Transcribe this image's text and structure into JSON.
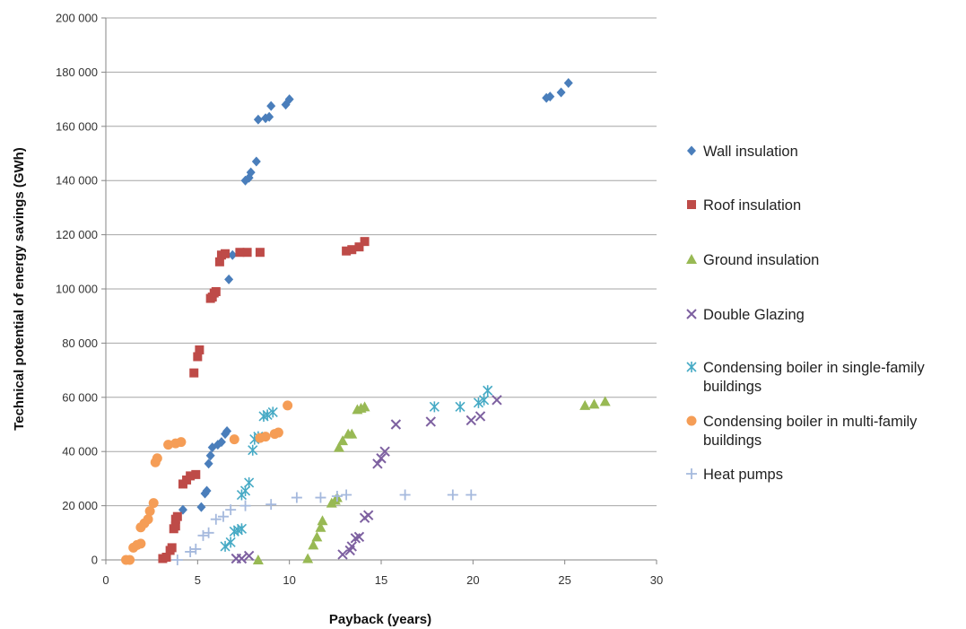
{
  "chart_data": {
    "type": "scatter",
    "title": "",
    "xlabel": "Payback (years)",
    "ylabel": "Technical potential of energy savings (GWh)",
    "xlim": [
      0,
      30
    ],
    "ylim": [
      0,
      200000
    ],
    "xticks": [
      0,
      5,
      10,
      15,
      20,
      25,
      30
    ],
    "yticks": [
      0,
      20000,
      40000,
      60000,
      80000,
      100000,
      120000,
      140000,
      160000,
      180000,
      200000
    ],
    "xtick_labels": [
      "0",
      "5",
      "10",
      "15",
      "20",
      "25",
      "30"
    ],
    "ytick_labels": [
      "0",
      "20 000",
      "40 000",
      "60 000",
      "80 000",
      "100 000",
      "120 000",
      "140 000",
      "160 000",
      "180 000",
      "200 000"
    ],
    "grid": "horizontal",
    "legend_position": "right",
    "series": [
      {
        "name": "Wall insulation",
        "marker": "diamond",
        "color": "#4a7ebb",
        "points": [
          [
            4.2,
            18500
          ],
          [
            5.2,
            19500
          ],
          [
            5.4,
            24500
          ],
          [
            5.5,
            25500
          ],
          [
            5.6,
            35500
          ],
          [
            5.7,
            38500
          ],
          [
            5.8,
            41500
          ],
          [
            6.1,
            42500
          ],
          [
            6.3,
            43500
          ],
          [
            6.5,
            46500
          ],
          [
            6.6,
            47500
          ],
          [
            6.7,
            103500
          ],
          [
            6.9,
            112500
          ],
          [
            7.6,
            140000
          ],
          [
            7.8,
            141000
          ],
          [
            7.9,
            143000
          ],
          [
            8.2,
            147000
          ],
          [
            8.3,
            162500
          ],
          [
            8.7,
            163000
          ],
          [
            8.9,
            163500
          ],
          [
            9.0,
            167500
          ],
          [
            9.8,
            168000
          ],
          [
            10.0,
            170000
          ],
          [
            24.0,
            170500
          ],
          [
            24.2,
            171000
          ],
          [
            24.8,
            172500
          ],
          [
            25.2,
            176000
          ]
        ]
      },
      {
        "name": "Roof insulation",
        "marker": "square",
        "color": "#be4b48",
        "points": [
          [
            3.1,
            500
          ],
          [
            3.3,
            1000
          ],
          [
            3.5,
            3500
          ],
          [
            3.6,
            4500
          ],
          [
            3.7,
            11500
          ],
          [
            3.8,
            12500
          ],
          [
            3.8,
            15000
          ],
          [
            3.9,
            16000
          ],
          [
            4.2,
            28000
          ],
          [
            4.4,
            29500
          ],
          [
            4.6,
            31000
          ],
          [
            4.9,
            31500
          ],
          [
            4.8,
            69000
          ],
          [
            5.0,
            75000
          ],
          [
            5.1,
            77500
          ],
          [
            5.7,
            96500
          ],
          [
            5.8,
            97000
          ],
          [
            5.9,
            98500
          ],
          [
            6.0,
            99000
          ],
          [
            6.2,
            110000
          ],
          [
            6.3,
            112500
          ],
          [
            6.5,
            113000
          ],
          [
            7.3,
            113500
          ],
          [
            7.7,
            113500
          ],
          [
            8.4,
            113500
          ],
          [
            13.1,
            114000
          ],
          [
            13.4,
            114500
          ],
          [
            13.8,
            115500
          ],
          [
            14.1,
            117500
          ]
        ]
      },
      {
        "name": "Ground insulation",
        "marker": "triangle",
        "color": "#98b954",
        "points": [
          [
            8.3,
            0
          ],
          [
            11.0,
            500
          ],
          [
            11.3,
            5500
          ],
          [
            11.5,
            8500
          ],
          [
            11.7,
            12000
          ],
          [
            11.8,
            14500
          ],
          [
            12.3,
            21000
          ],
          [
            12.5,
            22000
          ],
          [
            12.6,
            23000
          ],
          [
            12.7,
            41500
          ],
          [
            12.9,
            44000
          ],
          [
            13.2,
            46500
          ],
          [
            13.4,
            46500
          ],
          [
            13.7,
            55500
          ],
          [
            13.9,
            56000
          ],
          [
            14.1,
            56500
          ],
          [
            26.1,
            57000
          ],
          [
            26.6,
            57500
          ],
          [
            27.2,
            58500
          ]
        ]
      },
      {
        "name": "Double Glazing",
        "marker": "x",
        "color": "#7d60a0",
        "points": [
          [
            7.1,
            500
          ],
          [
            7.4,
            500
          ],
          [
            7.8,
            1500
          ],
          [
            12.9,
            2000
          ],
          [
            13.3,
            3500
          ],
          [
            13.4,
            5000
          ],
          [
            13.6,
            8000
          ],
          [
            13.8,
            8500
          ],
          [
            14.1,
            15500
          ],
          [
            14.3,
            16500
          ],
          [
            14.8,
            35500
          ],
          [
            15.0,
            37500
          ],
          [
            15.2,
            40000
          ],
          [
            15.8,
            50000
          ],
          [
            17.7,
            51000
          ],
          [
            19.9,
            51500
          ],
          [
            20.4,
            53000
          ],
          [
            21.3,
            59000
          ]
        ]
      },
      {
        "name": "Condensing boiler in single-family buildings",
        "marker": "asterisk",
        "color": "#46aac5",
        "points": [
          [
            6.5,
            5000
          ],
          [
            6.8,
            6500
          ],
          [
            7.0,
            10500
          ],
          [
            7.2,
            11000
          ],
          [
            7.4,
            11500
          ],
          [
            7.4,
            24000
          ],
          [
            7.6,
            25500
          ],
          [
            7.8,
            28500
          ],
          [
            8.0,
            40500
          ],
          [
            8.1,
            44500
          ],
          [
            8.3,
            45500
          ],
          [
            8.6,
            53000
          ],
          [
            8.8,
            53500
          ],
          [
            9.1,
            54500
          ],
          [
            17.9,
            56500
          ],
          [
            19.3,
            56500
          ],
          [
            20.3,
            58000
          ],
          [
            20.6,
            59000
          ],
          [
            20.8,
            62500
          ]
        ]
      },
      {
        "name": "Condensing boiler in multi-family buildings",
        "marker": "circle",
        "color": "#f59d56",
        "points": [
          [
            1.1,
            0
          ],
          [
            1.3,
            0
          ],
          [
            1.5,
            4500
          ],
          [
            1.7,
            5500
          ],
          [
            1.9,
            6000
          ],
          [
            1.9,
            12000
          ],
          [
            2.1,
            13500
          ],
          [
            2.3,
            15000
          ],
          [
            2.4,
            18000
          ],
          [
            2.6,
            21000
          ],
          [
            2.7,
            36000
          ],
          [
            2.8,
            37500
          ],
          [
            3.4,
            42500
          ],
          [
            3.8,
            43000
          ],
          [
            4.1,
            43500
          ],
          [
            7.0,
            44500
          ],
          [
            8.4,
            45000
          ],
          [
            8.7,
            45500
          ],
          [
            9.2,
            46500
          ],
          [
            9.4,
            47000
          ],
          [
            9.9,
            57000
          ]
        ]
      },
      {
        "name": "Heat pumps",
        "marker": "plus",
        "color": "#a5b9dd",
        "points": [
          [
            3.9,
            0
          ],
          [
            4.6,
            3000
          ],
          [
            4.9,
            4000
          ],
          [
            5.3,
            9000
          ],
          [
            5.6,
            10000
          ],
          [
            6.0,
            15000
          ],
          [
            6.4,
            16000
          ],
          [
            6.8,
            18500
          ],
          [
            7.6,
            20000
          ],
          [
            9.0,
            20500
          ],
          [
            10.4,
            23000
          ],
          [
            11.7,
            23000
          ],
          [
            12.6,
            23500
          ],
          [
            13.1,
            24000
          ],
          [
            16.3,
            24000
          ],
          [
            18.9,
            24000
          ],
          [
            19.9,
            24000
          ]
        ]
      }
    ]
  }
}
